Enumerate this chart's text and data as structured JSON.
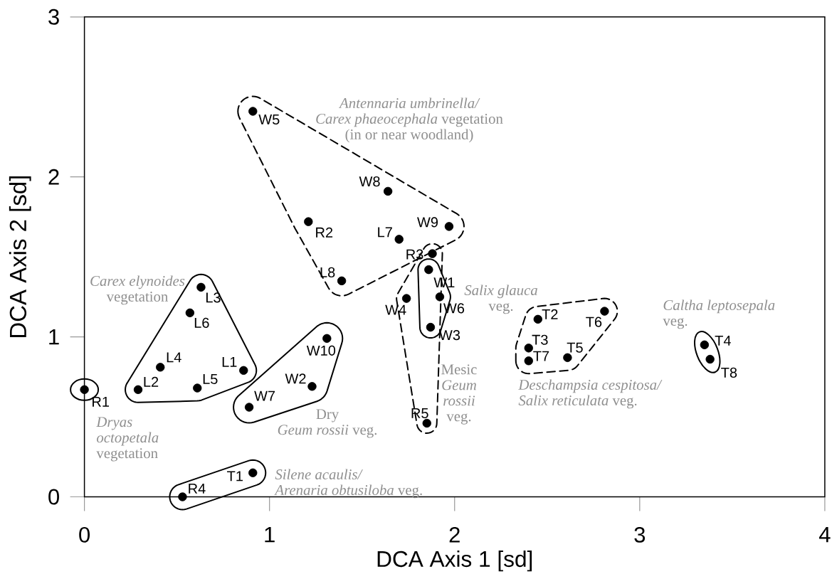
{
  "chart_data": {
    "type": "scatter",
    "xlabel": "DCA Axis 1 [sd]",
    "ylabel": "DCA Axis 2 [sd]",
    "xlim": [
      0,
      4
    ],
    "ylim": [
      0,
      3
    ],
    "xticks": [
      0,
      1,
      2,
      3,
      4
    ],
    "yticks": [
      0,
      1,
      2,
      3
    ],
    "marker": "circle",
    "series": [
      {
        "color": "#000000",
        "line_style": "dashed",
        "x": [
          0.91,
          1.64,
          1.97,
          1.21,
          1.7,
          1.39
        ],
        "values": [
          2.41,
          1.91,
          1.69,
          1.72,
          1.61,
          1.35
        ]
      },
      {
        "color": "#000000",
        "line_style": "dashed",
        "x": [
          1.88,
          1.74,
          1.85
        ],
        "values": [
          1.52,
          1.24,
          0.46
        ]
      },
      {
        "color": "#000000",
        "line_style": "solid",
        "x": [
          1.86,
          1.92,
          1.87
        ],
        "values": [
          1.42,
          1.25,
          1.06
        ]
      },
      {
        "color": "#000000",
        "line_style": "solid",
        "x": [
          0.63,
          0.57,
          0.41,
          0.86,
          0.61,
          0.29
        ],
        "values": [
          1.31,
          1.15,
          0.81,
          0.79,
          0.68,
          0.67
        ]
      },
      {
        "color": "#000000",
        "line_style": "solid",
        "x": [
          1.31,
          1.23,
          0.89
        ],
        "values": [
          0.99,
          0.69,
          0.56
        ]
      },
      {
        "color": "#000000",
        "line_style": "solid",
        "x": [
          0
        ],
        "values": [
          0.67
        ]
      },
      {
        "color": "#000000",
        "line_style": "solid",
        "x": [
          0.91,
          0.53
        ],
        "values": [
          0.15,
          0
        ]
      },
      {
        "color": "#000000",
        "line_style": "dashed",
        "x": [
          2.45,
          2.81,
          2.4,
          2.4,
          2.61
        ],
        "values": [
          1.11,
          1.16,
          0.93,
          0.85,
          0.87
        ]
      },
      {
        "color": "#000000",
        "line_style": "solid",
        "x": [
          3.35,
          3.38
        ],
        "values": [
          0.95,
          0.86
        ]
      }
    ],
    "annotations": [
      {
        "text": "W5",
        "x": 0.91,
        "y": 2.41
      },
      {
        "text": "W8",
        "x": 1.64,
        "y": 1.91
      },
      {
        "text": "W9",
        "x": 1.97,
        "y": 1.69
      },
      {
        "text": "R2",
        "x": 1.21,
        "y": 1.72
      },
      {
        "text": "L7",
        "x": 1.7,
        "y": 1.61
      },
      {
        "text": "L8",
        "x": 1.39,
        "y": 1.35
      },
      {
        "text": "R3",
        "x": 1.88,
        "y": 1.52
      },
      {
        "text": "W4",
        "x": 1.74,
        "y": 1.24
      },
      {
        "text": "R5",
        "x": 1.85,
        "y": 0.46
      },
      {
        "text": "W1",
        "x": 1.86,
        "y": 1.42
      },
      {
        "text": "W6",
        "x": 1.92,
        "y": 1.25
      },
      {
        "text": "W3",
        "x": 1.87,
        "y": 1.06
      },
      {
        "text": "L3",
        "x": 0.63,
        "y": 1.31
      },
      {
        "text": "L6",
        "x": 0.57,
        "y": 1.15
      },
      {
        "text": "L4",
        "x": 0.41,
        "y": 0.81
      },
      {
        "text": "L1",
        "x": 0.86,
        "y": 0.79
      },
      {
        "text": "L5",
        "x": 0.61,
        "y": 0.68
      },
      {
        "text": "L2",
        "x": 0.29,
        "y": 0.67
      },
      {
        "text": "W10",
        "x": 1.31,
        "y": 0.99
      },
      {
        "text": "W2",
        "x": 1.23,
        "y": 0.69
      },
      {
        "text": "W7",
        "x": 0.89,
        "y": 0.56
      },
      {
        "text": "R1",
        "x": 0,
        "y": 0.67
      },
      {
        "text": "T1",
        "x": 0.91,
        "y": 0.15
      },
      {
        "text": "R4",
        "x": 0.53,
        "y": 0
      },
      {
        "text": "T2",
        "x": 2.45,
        "y": 1.11
      },
      {
        "text": "T6",
        "x": 2.81,
        "y": 1.16
      },
      {
        "text": "T3",
        "x": 2.4,
        "y": 0.93
      },
      {
        "text": "T7",
        "x": 2.4,
        "y": 0.85
      },
      {
        "text": "T5",
        "x": 2.61,
        "y": 0.87
      },
      {
        "text": "T4",
        "x": 3.35,
        "y": 0.95
      },
      {
        "text": "T8",
        "x": 3.38,
        "y": 0.86
      },
      "*Antennaria umbrinella/ Carex phaeocephala* vegetation (in or near woodland)",
      "Mesic *Geum rossii* veg.",
      "*Salix glauca* veg.",
      "*Carex elynoides* vegetation",
      "Dry *Geum rossii* veg.",
      "*Dryas octopetala* vegetation",
      "*Silene acaulis/ Arenaria obtusiloba* veg.",
      "*Deschampsia cespitosa/ Salix reticulata* veg.",
      "*Caltha leptosepala* veg."
    ]
  }
}
